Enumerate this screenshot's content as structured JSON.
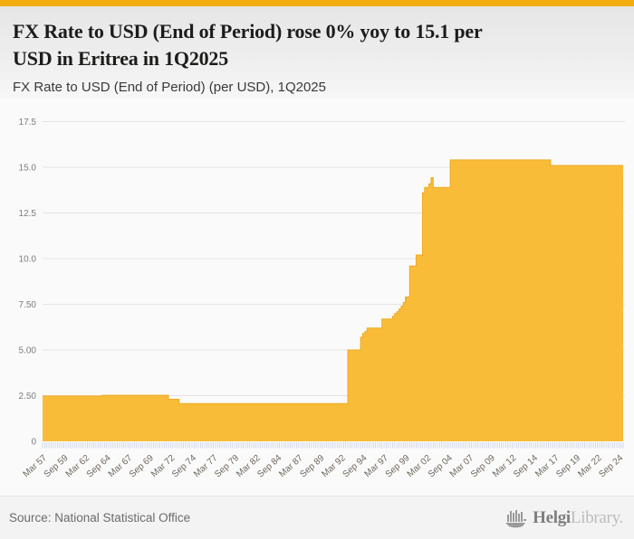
{
  "page": {
    "background": "#fafafa",
    "accent_color": "#F2AE0E"
  },
  "header": {
    "title_lines": [
      "FX Rate to USD (End of Period) rose 0% yoy to 15.1 per",
      "USD in Eritrea in 1Q2025"
    ],
    "subtitle": "FX Rate to USD (End of Period) (per USD), 1Q2025"
  },
  "footer": {
    "source": "Source: National Statistical Office",
    "logo_bold": "Helgi",
    "logo_light": "Library."
  },
  "chart_data": {
    "type": "area",
    "title": "FX Rate to USD (End of Period) rose 0% yoy to 15.1 per USD in Eritrea in 1Q2025",
    "subtitle": "FX Rate to USD (End of Period) (per USD), 1Q2025",
    "country": "Eritrea",
    "unit": "per USD",
    "frequency": "quarterly",
    "x_start": "1957Q1",
    "x_end": "2025Q1",
    "latest": {
      "period": "1Q2025",
      "value": 15.1,
      "yoy_change_pct": 0
    },
    "ylim": [
      0,
      17.5
    ],
    "grid_on": true,
    "legend": "none",
    "area_color": "#F8BC38",
    "area_edge_color": "#EFA91F",
    "grid_color": "#e4e4e4",
    "tick_color": "#c9cfe0",
    "y_ticks": [
      {
        "v": 17.5,
        "label": "17.5"
      },
      {
        "v": 15.0,
        "label": "15.0"
      },
      {
        "v": 12.5,
        "label": "12.5"
      },
      {
        "v": 10.0,
        "label": "10.0"
      },
      {
        "v": 7.5,
        "label": "7.50"
      },
      {
        "v": 5.0,
        "label": "5.00"
      },
      {
        "v": 2.5,
        "label": "2.50"
      },
      {
        "v": 0,
        "label": "0"
      }
    ],
    "x_tick_labels": [
      "Mar 57",
      "Sep 59",
      "Mar 62",
      "Sep 64",
      "Mar 67",
      "Sep 69",
      "Mar 72",
      "Sep 74",
      "Mar 77",
      "Sep 79",
      "Mar 82",
      "Sep 84",
      "Mar 87",
      "Sep 89",
      "Mar 92",
      "Sep 94",
      "Mar 97",
      "Sep 99",
      "Mar 02",
      "Sep 04",
      "Mar 07",
      "Sep 09",
      "Mar 12",
      "Sep 14",
      "Mar 17",
      "Sep 19",
      "Mar 22",
      "Sep 24"
    ],
    "x_label_every_n_quarters": 10,
    "segments": [
      {
        "from": "1957Q1",
        "to": "1963Q4",
        "value": 2.48
      },
      {
        "from": "1964Q1",
        "to": "1971Q3",
        "value": 2.52
      },
      {
        "from": "1971Q4",
        "to": "1972Q4",
        "value": 2.3
      },
      {
        "from": "1973Q1",
        "to": "1992Q3",
        "value": 2.07
      },
      {
        "from": "1992Q4",
        "to": "1994Q1",
        "value": 5.0
      },
      {
        "from": "1994Q2",
        "to": "1994Q2",
        "value": 5.7
      },
      {
        "from": "1994Q3",
        "to": "1994Q3",
        "value": 5.9
      },
      {
        "from": "1994Q4",
        "to": "1994Q4",
        "value": 6.0
      },
      {
        "from": "1995Q1",
        "to": "1996Q3",
        "value": 6.2
      },
      {
        "from": "1996Q4",
        "to": "1997Q4",
        "value": 6.7
      },
      {
        "from": "1998Q1",
        "to": "1998Q1",
        "value": 6.85
      },
      {
        "from": "1998Q2",
        "to": "1998Q2",
        "value": 7.0
      },
      {
        "from": "1998Q3",
        "to": "1998Q3",
        "value": 7.1
      },
      {
        "from": "1998Q4",
        "to": "1998Q4",
        "value": 7.25
      },
      {
        "from": "1999Q1",
        "to": "1999Q1",
        "value": 7.4
      },
      {
        "from": "1999Q2",
        "to": "1999Q2",
        "value": 7.6
      },
      {
        "from": "1999Q3",
        "to": "1999Q4",
        "value": 7.9
      },
      {
        "from": "2000Q1",
        "to": "2000Q3",
        "value": 9.6
      },
      {
        "from": "2000Q4",
        "to": "2001Q2",
        "value": 10.2
      },
      {
        "from": "2001Q3",
        "to": "2001Q3",
        "value": 13.6
      },
      {
        "from": "2001Q4",
        "to": "2002Q1",
        "value": 13.9
      },
      {
        "from": "2002Q2",
        "to": "2002Q2",
        "value": 14.1
      },
      {
        "from": "2002Q3",
        "to": "2002Q3",
        "value": 14.43
      },
      {
        "from": "2002Q4",
        "to": "2004Q3",
        "value": 13.9
      },
      {
        "from": "2004Q4",
        "to": "2016Q2",
        "value": 15.4
      },
      {
        "from": "2016Q3",
        "to": "2025Q1",
        "value": 15.1
      }
    ]
  }
}
